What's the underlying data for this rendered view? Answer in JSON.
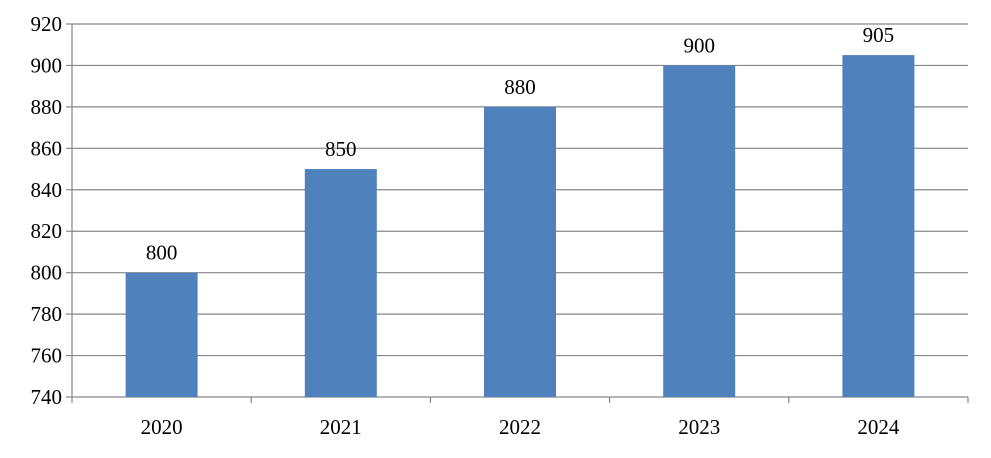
{
  "chart_data": {
    "type": "bar",
    "categories": [
      "2020",
      "2021",
      "2022",
      "2023",
      "2024"
    ],
    "values": [
      800,
      850,
      880,
      900,
      905
    ],
    "data_labels": [
      "800",
      "850",
      "880",
      "900",
      "905"
    ],
    "title": "",
    "xlabel": "",
    "ylabel": "",
    "ylim": [
      740,
      920
    ],
    "yticks": [
      740,
      760,
      780,
      800,
      820,
      840,
      860,
      880,
      900,
      920
    ],
    "ytick_labels": [
      "740",
      "760",
      "780",
      "800",
      "820",
      "840",
      "860",
      "880",
      "900",
      "920"
    ],
    "grid": true,
    "legend": "none",
    "colors": {
      "bar": "#4f81bd",
      "grid": "#868686",
      "axis": "#868686",
      "text": "#000000"
    }
  }
}
